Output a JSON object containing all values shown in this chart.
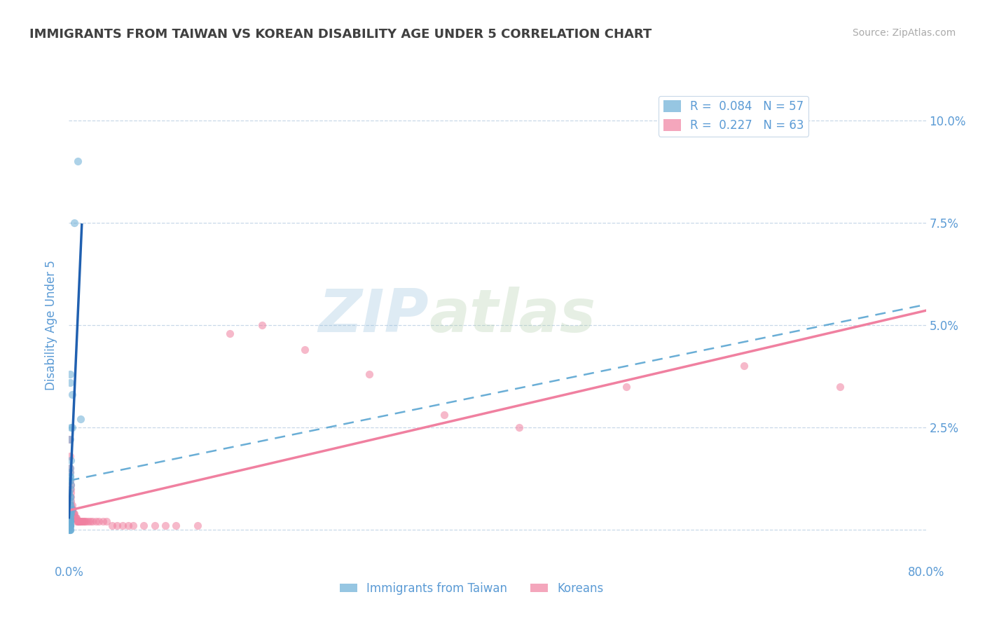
{
  "title": "IMMIGRANTS FROM TAIWAN VS KOREAN DISABILITY AGE UNDER 5 CORRELATION CHART",
  "source": "Source: ZipAtlas.com",
  "ylabel": "Disability Age Under 5",
  "xlim": [
    0.0,
    0.8
  ],
  "ylim": [
    -0.008,
    0.108
  ],
  "taiwan_color": "#6aaed6",
  "korean_color": "#f080a0",
  "taiwan_R": 0.084,
  "taiwan_N": 57,
  "korean_R": 0.227,
  "korean_N": 63,
  "background_color": "#ffffff",
  "grid_color": "#c8d8e8",
  "taiwan_scatter_x": [
    0.008,
    0.005,
    0.001,
    0.001,
    0.003,
    0.002,
    0.001,
    0.002,
    0.001,
    0.001,
    0.001,
    0.0,
    0.001,
    0.002,
    0.001,
    0.0,
    0.0,
    0.001,
    0.001,
    0.001,
    0.0,
    0.001,
    0.001,
    0.001,
    0.001,
    0.0,
    0.002,
    0.001,
    0.003,
    0.001,
    0.002,
    0.001,
    0.0,
    0.001,
    0.0,
    0.001,
    0.0,
    0.001,
    0.001,
    0.001,
    0.0,
    0.001,
    0.0,
    0.0,
    0.001,
    0.001,
    0.001,
    0.001,
    0.001,
    0.001,
    0.001,
    0.0,
    0.001,
    0.0,
    0.003,
    0.001,
    0.011
  ],
  "taiwan_scatter_y": [
    0.09,
    0.075,
    0.038,
    0.036,
    0.033,
    0.025,
    0.022,
    0.017,
    0.015,
    0.014,
    0.013,
    0.012,
    0.012,
    0.011,
    0.01,
    0.009,
    0.009,
    0.008,
    0.008,
    0.007,
    0.007,
    0.006,
    0.006,
    0.005,
    0.005,
    0.005,
    0.005,
    0.005,
    0.005,
    0.004,
    0.004,
    0.004,
    0.004,
    0.003,
    0.003,
    0.003,
    0.003,
    0.002,
    0.002,
    0.002,
    0.002,
    0.002,
    0.001,
    0.001,
    0.001,
    0.001,
    0.001,
    0.001,
    0.001,
    0.0,
    0.0,
    0.0,
    0.0,
    0.0,
    0.025,
    0.013,
    0.027
  ],
  "korean_scatter_x": [
    0.0,
    0.001,
    0.001,
    0.001,
    0.001,
    0.002,
    0.002,
    0.002,
    0.002,
    0.002,
    0.002,
    0.003,
    0.003,
    0.003,
    0.003,
    0.003,
    0.004,
    0.004,
    0.005,
    0.005,
    0.005,
    0.006,
    0.006,
    0.007,
    0.007,
    0.008,
    0.008,
    0.009,
    0.009,
    0.01,
    0.01,
    0.011,
    0.012,
    0.013,
    0.014,
    0.015,
    0.016,
    0.018,
    0.02,
    0.022,
    0.025,
    0.028,
    0.032,
    0.035,
    0.04,
    0.045,
    0.05,
    0.055,
    0.06,
    0.07,
    0.08,
    0.09,
    0.1,
    0.12,
    0.15,
    0.18,
    0.22,
    0.28,
    0.35,
    0.42,
    0.52,
    0.63,
    0.72
  ],
  "korean_scatter_y": [
    0.022,
    0.018,
    0.015,
    0.014,
    0.012,
    0.011,
    0.01,
    0.009,
    0.008,
    0.007,
    0.006,
    0.006,
    0.005,
    0.005,
    0.005,
    0.004,
    0.004,
    0.004,
    0.004,
    0.003,
    0.003,
    0.003,
    0.003,
    0.003,
    0.002,
    0.002,
    0.002,
    0.002,
    0.002,
    0.002,
    0.002,
    0.002,
    0.002,
    0.002,
    0.002,
    0.002,
    0.002,
    0.002,
    0.002,
    0.002,
    0.002,
    0.002,
    0.002,
    0.002,
    0.001,
    0.001,
    0.001,
    0.001,
    0.001,
    0.001,
    0.001,
    0.001,
    0.001,
    0.001,
    0.048,
    0.05,
    0.044,
    0.038,
    0.028,
    0.025,
    0.035,
    0.04,
    0.035
  ],
  "watermark_zip": "ZIP",
  "watermark_atlas": "atlas",
  "title_color": "#404040",
  "axis_color": "#5b9bd5",
  "legend_taiwan_label": "Immigrants from Taiwan",
  "legend_korean_label": "Koreans",
  "taiwan_trend_x0": 0.0,
  "taiwan_trend_x1": 0.012,
  "korean_trend_x0": 0.0,
  "korean_trend_x1": 0.8
}
